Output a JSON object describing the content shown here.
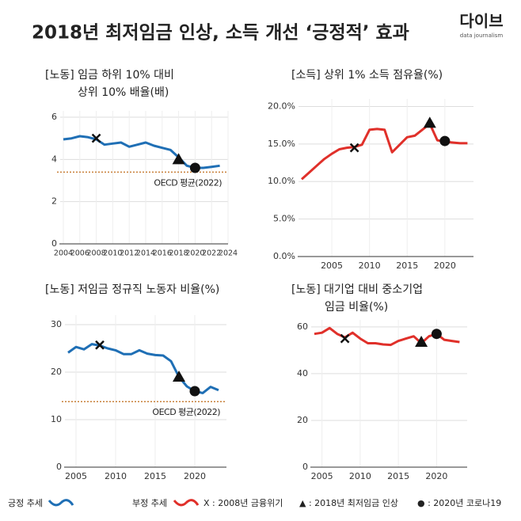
{
  "header": {
    "title": "2018년 최저임금 인상, 소득 개선 ‘긍정적’ 효과",
    "logo": "다이브",
    "logo_sub": "data journalism"
  },
  "legend": [
    {
      "label": "긍정 추세",
      "color": "#1f6fb5"
    },
    {
      "label": "부정 추세",
      "color": "#e0302a"
    }
  ],
  "symbol_legend": [
    "X : 2008년 금융위기",
    "▲ : 2018년 최저임금 인상",
    "● : 2020년 코로나19"
  ],
  "chart_data": [
    {
      "type": "line",
      "title": [
        "[노동] 임금 하위 10% 대비",
        "상위 10%  배율(배)"
      ],
      "color": "#1f6fb5",
      "x": [
        2004,
        2005,
        2006,
        2007,
        2008,
        2009,
        2010,
        2011,
        2012,
        2013,
        2014,
        2015,
        2016,
        2017,
        2018,
        2019,
        2020,
        2021,
        2022,
        2023
      ],
      "values": [
        4.95,
        5.0,
        5.1,
        5.05,
        4.95,
        4.7,
        4.75,
        4.8,
        4.6,
        4.7,
        4.8,
        4.65,
        4.55,
        4.45,
        4.1,
        3.7,
        3.6,
        3.6,
        3.65,
        3.7
      ],
      "xlim": [
        2004,
        2024
      ],
      "xticks": [
        2004,
        2006,
        2008,
        2010,
        2012,
        2014,
        2016,
        2018,
        2020,
        2022,
        2024
      ],
      "ylim": [
        0,
        6.3
      ],
      "yticks": [
        0,
        2,
        4,
        6
      ],
      "grid": true,
      "reference": {
        "label": "OECD 평균(2022)",
        "value": 3.4
      },
      "markers": [
        {
          "symbol": "x",
          "x": 2008,
          "y": 5.0
        },
        {
          "symbol": "triangle",
          "x": 2018,
          "y": 4.0
        },
        {
          "symbol": "circle",
          "x": 2020,
          "y": 3.6
        }
      ]
    },
    {
      "type": "line",
      "title": [
        "[소득] 상위 1% 소득 점유율(%)"
      ],
      "color": "#e0302a",
      "x": [
        2001,
        2002,
        2003,
        2004,
        2005,
        2006,
        2007,
        2008,
        2009,
        2010,
        2011,
        2012,
        2013,
        2014,
        2015,
        2016,
        2017,
        2018,
        2019,
        2020,
        2021,
        2022,
        2023
      ],
      "values": [
        10.3,
        11.2,
        12.1,
        13.0,
        13.7,
        14.3,
        14.5,
        14.6,
        14.9,
        16.9,
        17.0,
        16.9,
        13.9,
        14.9,
        15.9,
        16.1,
        16.9,
        17.7,
        15.5,
        15.3,
        15.2,
        15.1,
        15.1
      ],
      "xlim": [
        2001,
        2023.8
      ],
      "xticks": [
        2005,
        2010,
        2015,
        2020
      ],
      "ylim": [
        0,
        21
      ],
      "yticks": [
        {
          "value": 0,
          "label": "0.0%"
        },
        {
          "value": 5,
          "label": "5.0%"
        },
        {
          "value": 10,
          "label": "10.0%"
        },
        {
          "value": 15,
          "label": "15.0%"
        },
        {
          "value": 20,
          "label": "20.0%"
        }
      ],
      "grid": true,
      "markers": [
        {
          "symbol": "x",
          "x": 2008,
          "y": 14.5
        },
        {
          "symbol": "triangle",
          "x": 2018,
          "y": 17.8
        },
        {
          "symbol": "circle",
          "x": 2020,
          "y": 15.4
        }
      ]
    },
    {
      "type": "line",
      "title": [
        "[노동] 저임금 정규직 노동자 비율(%)"
      ],
      "color": "#1f6fb5",
      "x": [
        2004,
        2005,
        2006,
        2007,
        2008,
        2009,
        2010,
        2011,
        2012,
        2013,
        2014,
        2015,
        2016,
        2017,
        2018,
        2019,
        2020,
        2021,
        2022,
        2023
      ],
      "values": [
        24.1,
        25.3,
        24.8,
        25.9,
        25.6,
        25.0,
        24.6,
        23.8,
        23.8,
        24.6,
        23.9,
        23.6,
        23.5,
        22.3,
        19.0,
        17.0,
        16.0,
        15.6,
        16.9,
        16.2
      ],
      "xlim": [
        2004,
        2024
      ],
      "xticks": [
        2005,
        2010,
        2015,
        2020
      ],
      "ylim": [
        0,
        32
      ],
      "yticks": [
        0,
        10,
        20,
        30
      ],
      "grid": true,
      "reference": {
        "label": "OECD 평균(2022)",
        "value": 13.8
      },
      "markers": [
        {
          "symbol": "x",
          "x": 2008,
          "y": 25.7
        },
        {
          "symbol": "triangle",
          "x": 2018,
          "y": 19.0
        },
        {
          "symbol": "circle",
          "x": 2020,
          "y": 16.0
        }
      ]
    },
    {
      "type": "line",
      "title": [
        "[노동] 대기업 대비 중소기업",
        "임금 비율(%)"
      ],
      "color": "#e0302a",
      "x": [
        2004,
        2005,
        2006,
        2007,
        2008,
        2009,
        2010,
        2011,
        2012,
        2013,
        2014,
        2015,
        2016,
        2017,
        2018,
        2019,
        2020,
        2021,
        2022,
        2023
      ],
      "values": [
        57,
        57.5,
        59.5,
        57,
        55.5,
        57.5,
        55,
        53,
        53,
        52.5,
        52.3,
        54,
        55,
        56,
        53,
        56,
        57,
        54.5,
        54,
        53.5
      ],
      "xlim": [
        2004,
        2024
      ],
      "xticks": [
        2005,
        2010,
        2015,
        2020
      ],
      "ylim": [
        0,
        63
      ],
      "yticks": [
        0,
        20,
        40,
        60
      ],
      "grid": true,
      "markers": [
        {
          "symbol": "x",
          "x": 2008,
          "y": 55
        },
        {
          "symbol": "triangle",
          "x": 2018,
          "y": 53.5
        },
        {
          "symbol": "circle",
          "x": 2020,
          "y": 57
        }
      ]
    }
  ]
}
